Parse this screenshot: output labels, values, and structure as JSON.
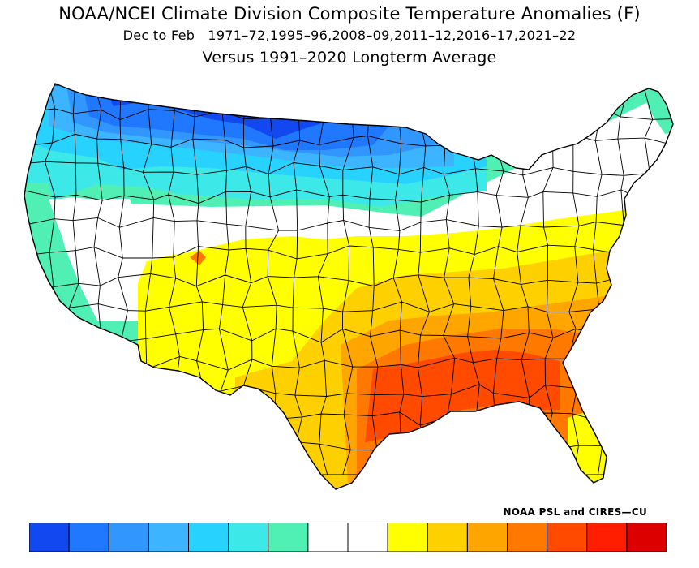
{
  "header": {
    "title": "NOAA/NCEI Climate Division Composite Temperature Anomalies (F)",
    "subtitle": "Dec to Feb   1971–72,1995–96,2008–09,2011–12,2016–17,2021–22",
    "subtitle2": "Versus 1991–2020 Longterm Average"
  },
  "credit": "NOAA PSL and CIRES—CU",
  "colorbar": {
    "colors": [
      "#1248f0",
      "#1f78ff",
      "#3296ff",
      "#3cb4ff",
      "#28d2ff",
      "#3ce8e8",
      "#50f0b4",
      "#ffffff",
      "#ffffff",
      "#ffff00",
      "#ffd000",
      "#ffa500",
      "#ff7800",
      "#ff4a00",
      "#ff1e00",
      "#dc0000"
    ]
  },
  "palette": {
    "dark_blue": "#1248f0",
    "mid_blue": "#1f78ff",
    "light_blue": "#3296ff",
    "sky": "#3cb4ff",
    "cyan": "#28d2ff",
    "teal": "#3ce8e8",
    "aqua": "#50f0b4",
    "neutral": "#ffffff",
    "yellow": "#ffff00",
    "gold": "#ffd000",
    "orange": "#ffa500",
    "deep_orange": "#ff7800",
    "red_orange": "#ff4a00"
  }
}
